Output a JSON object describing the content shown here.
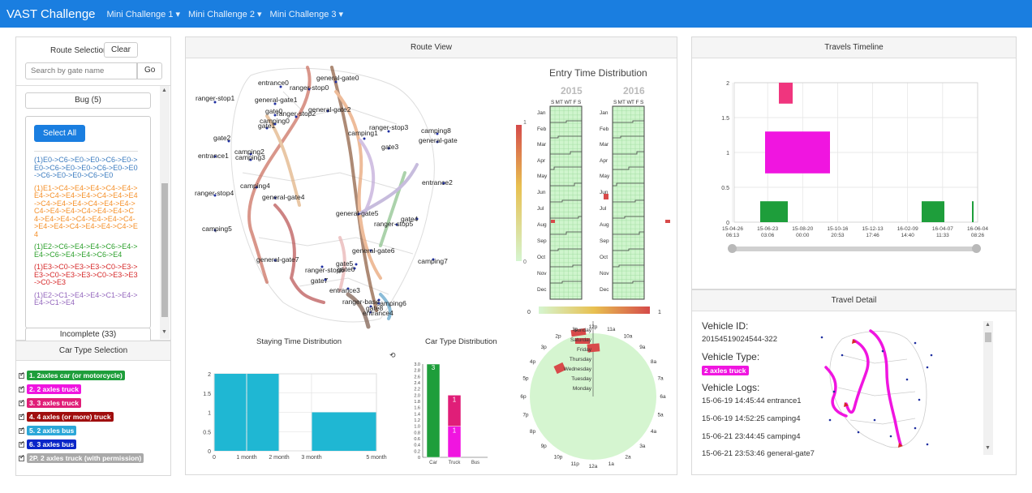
{
  "nav": {
    "brand": "VAST Challenge",
    "menus": [
      "Mini Challenge 1 ▾",
      "Mini Challenge 2 ▾",
      "Mini Challenge 3 ▾"
    ]
  },
  "route_selection": {
    "label": "Route Selection",
    "clear": "Clear",
    "search_placeholder": "Search by gate name",
    "go": "Go",
    "group_bug": "Bug (5)",
    "select_all": "Select All",
    "routes": [
      {
        "text": "(1)E0->C6->E0->E0->C6->E0->E0->C6->E0->E0->C6->E0->E0->C6->E0->E0->C6->E0",
        "color": "#3b7bbf"
      },
      {
        "text": "(1)E1->C4->E4->E4->C4->E4->E4->C4->E4->E4->C4->E4->E4->C4->E4->E4->C4->E4->E4->C4->E4->E4->C4->E4->E4->C4->E4->E4->C4->E4->E4->C4->E4->E4->C4->E4->E4->C4->E4",
        "color": "#f5902a"
      },
      {
        "text": "(1)E2->C6->E4->E4->C6->E4->E4->C6->E4->E4->C6->E4",
        "color": "#2ca02c"
      },
      {
        "text": "(1)E3->C0->E3->E3->C0->E3->E3->C0->E3->E3->C0->E3->E3->C0->E3",
        "color": "#d62728"
      },
      {
        "text": "(1)E2->C1->E4->E4->C1->E4->E4->C1->E4",
        "color": "#9467bd"
      }
    ],
    "group_incomplete": "Incomplete (33)"
  },
  "car_type": {
    "title": "Car Type Selection",
    "items": [
      {
        "label": "1. 2axles car (or motorcycle)",
        "color": "#1e9e3b"
      },
      {
        "label": "2. 2 axles truck",
        "color": "#f015e0"
      },
      {
        "label": "3. 3 axles truck",
        "color": "#e01e78"
      },
      {
        "label": "4. 4 axles (or more) truck",
        "color": "#a00d0d"
      },
      {
        "label": "5. 2 axles bus",
        "color": "#2ba7d8"
      },
      {
        "label": "6. 3 axles bus",
        "color": "#0b26c8"
      },
      {
        "label": "2P. 2 axles truck (with permission)",
        "color": "#a9a9a9"
      }
    ]
  },
  "route_view": {
    "title": "Route View",
    "gates": [
      "entrance0",
      "general-gate0",
      "ranger-stop0",
      "ranger-stop1",
      "general-gate1",
      "general-gate2",
      "gate0",
      "ranger-stop2",
      "camping0",
      "gate1",
      "camping1",
      "ranger-stop3",
      "camping8",
      "general-gate",
      "gate2",
      "gate3",
      "entrance1",
      "camping2",
      "camping3",
      "entrance2",
      "camping4",
      "ranger-stop4",
      "general-gate4",
      "general-gate5",
      "gate4",
      "ranger-stop5",
      "camping5",
      "general-gate6",
      "general-gate7",
      "ranger-stop6",
      "gate5",
      "gate6",
      "camping7",
      "gate7",
      "entrance3",
      "ranger-base",
      "camping6",
      "gate8",
      "entrance4"
    ]
  },
  "entry_time": {
    "title": "Entry Time Distribution",
    "years": [
      "2015",
      "2016"
    ],
    "weekdays": [
      "S",
      "M",
      "T",
      "W",
      "T",
      "F",
      "S"
    ],
    "months": [
      "Jan",
      "Feb",
      "Mar",
      "Apr",
      "May",
      "Jun",
      "Jul",
      "Aug",
      "Sep",
      "Oct",
      "Nov",
      "Dec"
    ],
    "scale": [
      "1",
      "0"
    ]
  },
  "clock": {
    "scale_min": "0",
    "scale_max": "1",
    "hours": [
      "12p",
      "1p",
      "2p",
      "3p",
      "4p",
      "5p",
      "6p",
      "7p",
      "8p",
      "9p",
      "10p",
      "11p",
      "12a",
      "1a",
      "2a",
      "3a",
      "4a",
      "5a",
      "6a",
      "7a",
      "8a",
      "9a",
      "10a",
      "11a"
    ],
    "days": [
      "Sunday",
      "Saturday",
      "Friday",
      "Thursday",
      "Wednesday",
      "Tuesday",
      "Monday"
    ]
  },
  "staying_time": {
    "title": "Staying Time Distribution",
    "chart_data": {
      "type": "bar",
      "categories": [
        "0-1 month",
        "1-2 month",
        "2-3 month",
        "3-5 month"
      ],
      "values": [
        2,
        2,
        0,
        1
      ],
      "ticks_x": [
        "0",
        "1 month",
        "2 month",
        "3 month",
        "5 month"
      ],
      "ticks_y": [
        "0",
        "0.5",
        "1",
        "1.5",
        "2"
      ],
      "ylim": [
        0,
        2
      ]
    }
  },
  "car_type_dist": {
    "title": "Car Type Distribution",
    "chart_data": {
      "type": "bar",
      "categories": [
        "Car",
        "Truck",
        "Bus"
      ],
      "series": [
        {
          "name": "2axles car",
          "values": [
            3,
            0,
            0
          ],
          "color": "#1e9e3b"
        },
        {
          "name": "2 axles truck",
          "values": [
            0,
            1,
            0
          ],
          "color": "#f015e0"
        },
        {
          "name": "3 axles truck",
          "values": [
            0,
            1,
            0
          ],
          "color": "#e01e78"
        }
      ],
      "ylim": [
        0,
        3
      ],
      "ticks_y": [
        "0",
        "0.2",
        "0.4",
        "0.6",
        "0.8",
        "1.0",
        "1.2",
        "1.4",
        "1.6",
        "1.8",
        "2.0",
        "2.2",
        "2.4",
        "2.6",
        "2.8",
        "3.0"
      ],
      "labels": [
        "3",
        "1",
        "1"
      ]
    }
  },
  "timeline": {
    "title": "Travels Timeline",
    "ticks_y": [
      "0",
      "0.5",
      "1",
      "1.5",
      "2"
    ],
    "ticks_x": [
      [
        "15-04-26",
        "06:13"
      ],
      [
        "15-06-23",
        "03:06"
      ],
      [
        "15-08-20",
        "00:00"
      ],
      [
        "15-10-16",
        "20:53"
      ],
      [
        "15-12-13",
        "17:46"
      ],
      [
        "16-02-09",
        "14:40"
      ],
      [
        "16-04-07",
        "11:33"
      ],
      [
        "16-06-04",
        "08:26"
      ]
    ]
  },
  "travel_detail": {
    "title": "Travel Detail",
    "vehicle_id_label": "Vehicle ID:",
    "vehicle_id": "20154519024544-322",
    "vehicle_type_label": "Vehicle Type:",
    "vehicle_type": "2 axles truck",
    "logs_label": "Vehicle Logs:",
    "logs": [
      "15-06-19 14:45:44 entrance1",
      "15-06-19 14:52:25 camping4",
      "15-06-21 23:44:45 camping4",
      "15-06-21 23:53:46 general-gate7"
    ]
  }
}
